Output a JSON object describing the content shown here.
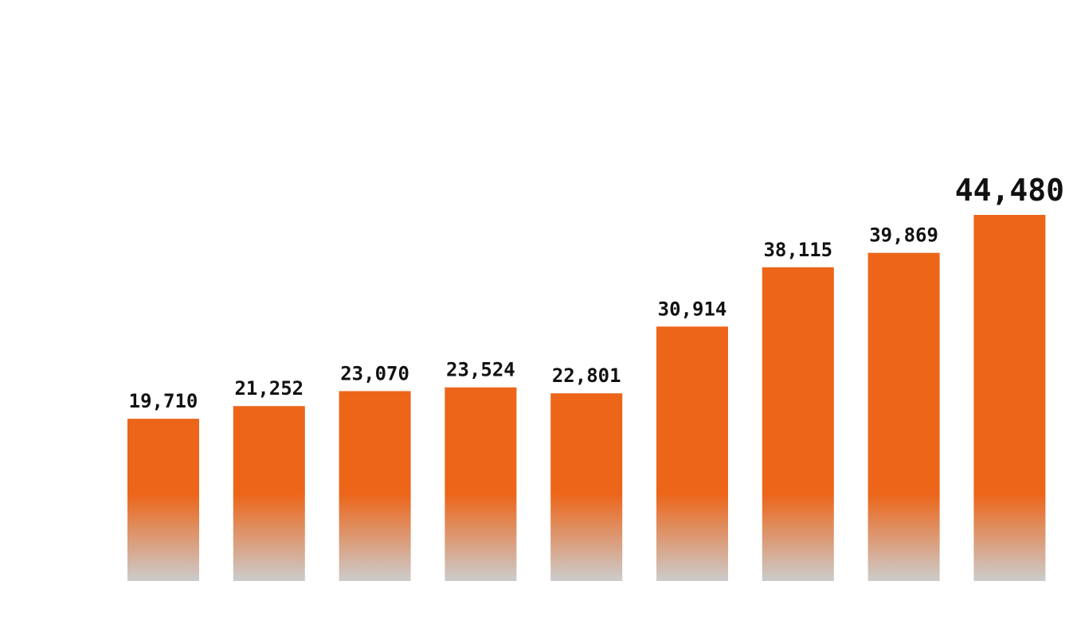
{
  "chart_data": {
    "type": "bar",
    "categories": [
      "",
      "",
      "",
      "",
      "",
      "",
      "",
      "",
      ""
    ],
    "values": [
      19710,
      21252,
      23070,
      23524,
      22801,
      30914,
      38115,
      39869,
      44480
    ],
    "value_labels": [
      "19,710",
      "21,252",
      "23,070",
      "23,524",
      "22,801",
      "30,914",
      "38,115",
      "39,869",
      "44,480"
    ],
    "highlight_index": 8,
    "title": "",
    "xlabel": "",
    "ylabel": "",
    "ylim": [
      0,
      44480
    ],
    "grid": false,
    "legend": "none"
  },
  "colors": {
    "bar_top": "#ec6519",
    "bar_bottom": "#cccccc",
    "label": "#111111",
    "background": "#ffffff"
  }
}
